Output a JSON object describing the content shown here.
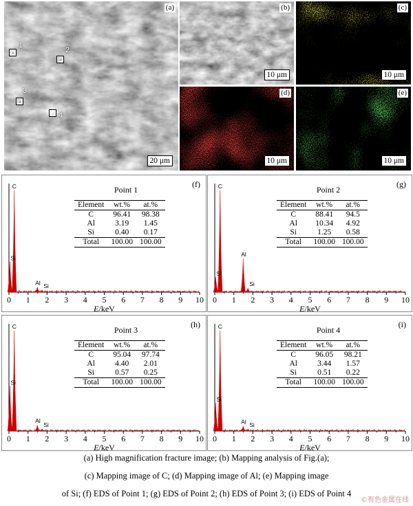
{
  "images": {
    "a": {
      "tag": "(a)",
      "scale": "20 μm",
      "points": [
        "1",
        "2",
        "3",
        "4"
      ]
    },
    "b": {
      "tag": "(b)",
      "scale": "10 μm"
    },
    "c": {
      "tag": "(c)",
      "scale": "10 μm",
      "color": "#e6e619"
    },
    "d": {
      "tag": "(d)",
      "scale": "10 μm",
      "color": "#e01010"
    },
    "e": {
      "tag": "(e)",
      "scale": "10 μm",
      "color": "#22cc22"
    }
  },
  "eds_common": {
    "x_ticks": [
      "0",
      "1",
      "2",
      "3",
      "4",
      "5",
      "6",
      "7",
      "8",
      "9",
      "10"
    ],
    "xlabel_italic": "E",
    "xlabel_unit": "/keV",
    "table_header": [
      "Element",
      "wt.%",
      "at.%"
    ],
    "total_label": "Total",
    "spectrum_color": "#cc0000"
  },
  "chart_data": [
    {
      "type": "table",
      "tag": "(f)",
      "title": "Point 1",
      "rows": [
        [
          "C",
          "96.41",
          "98.38"
        ],
        [
          "Al",
          "3.19",
          "1.45"
        ],
        [
          "Si",
          "0.40",
          "0.17"
        ]
      ],
      "total": [
        "100.00",
        "100.00"
      ],
      "peaks": [
        {
          "label": "C",
          "x": 0.28,
          "h": 1.0
        },
        {
          "label": "Si",
          "x": 0.05,
          "h": 0.3
        },
        {
          "label": "Al",
          "x": 1.49,
          "h": 0.05
        },
        {
          "label": "Si",
          "x": 1.74,
          "h": 0.02
        }
      ]
    },
    {
      "type": "table",
      "tag": "(g)",
      "title": "Point 2",
      "rows": [
        [
          "C",
          "88.41",
          "94.5"
        ],
        [
          "Al",
          "10.34",
          "4.92"
        ],
        [
          "Si",
          "1.25",
          "0.58"
        ]
      ],
      "total": [
        "100.00",
        "100.00"
      ],
      "peaks": [
        {
          "label": "C",
          "x": 0.28,
          "h": 1.0
        },
        {
          "label": "Si",
          "x": 0.05,
          "h": 0.15
        },
        {
          "label": "Al",
          "x": 1.49,
          "h": 0.33
        },
        {
          "label": "Si",
          "x": 1.74,
          "h": 0.04
        }
      ]
    },
    {
      "type": "table",
      "tag": "(h)",
      "title": "Point 3",
      "rows": [
        [
          "C",
          "95.04",
          "97.74"
        ],
        [
          "Al",
          "4.40",
          "2.01"
        ],
        [
          "Si",
          "0.57",
          "0.25"
        ]
      ],
      "total": [
        "100.00",
        "100.00"
      ],
      "peaks": [
        {
          "label": "C",
          "x": 0.28,
          "h": 1.0
        },
        {
          "label": "Si",
          "x": 0.05,
          "h": 0.45
        },
        {
          "label": "Al",
          "x": 1.49,
          "h": 0.06
        },
        {
          "label": "Si",
          "x": 1.74,
          "h": 0.02
        }
      ]
    },
    {
      "type": "table",
      "tag": "(i)",
      "title": "Point 4",
      "rows": [
        [
          "C",
          "96.05",
          "98.21"
        ],
        [
          "Al",
          "3.44",
          "1.57"
        ],
        [
          "Si",
          "0.51",
          "0.22"
        ]
      ],
      "total": [
        "100.00",
        "100.00"
      ],
      "peaks": [
        {
          "label": "C",
          "x": 0.28,
          "h": 1.0
        },
        {
          "label": "Si",
          "x": 0.05,
          "h": 0.28
        },
        {
          "label": "Al",
          "x": 1.49,
          "h": 0.05
        },
        {
          "label": "Si",
          "x": 1.74,
          "h": 0.02
        }
      ]
    }
  ],
  "caption": [
    "(a) High magnification fracture image; (b) Mapping analysis of Fig.(a);",
    "(c) Mapping image of C; (d) Mapping image of Al; (e) Mapping image",
    "of Si; (f) EDS of Point 1; (g) EDS of Point 2; (h) EDS of Point 3; (i) EDS of Point 4"
  ],
  "watermark": "©有色金属在线"
}
